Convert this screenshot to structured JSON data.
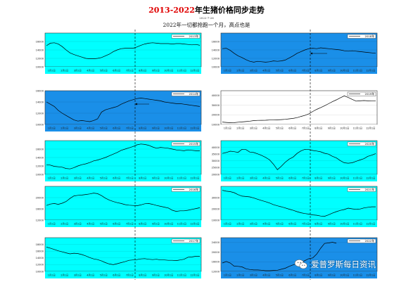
{
  "header": {
    "title_red": "2013-2022",
    "title_rest": "年生猪价格同步走势",
    "date": "2022-7-26",
    "subtitle": "2022年一切都抢跑一个月，高点也是"
  },
  "watermark": {
    "text": "爱普罗斯每日资讯",
    "icon": "wechat-logo-icon"
  },
  "colors": {
    "cyan_bg": "#00ffff",
    "blue_bg": "#1a8fe8",
    "line": "#000000",
    "axis_bg": "#ffffff"
  },
  "chart_data": [
    {
      "type": "line",
      "series": [
        {
          "name": "2013年",
          "values": [
            15,
            15.6,
            15.7,
            15.4,
            14.8,
            14,
            13.3,
            12.9,
            12.6,
            12.3,
            12,
            11.9,
            11.9,
            12,
            12.2,
            12.6,
            13,
            13.6,
            14,
            14.3,
            14.4,
            14.4,
            14.4,
            14.7,
            15.1,
            15.4,
            15.6,
            15.7,
            15.6,
            15.5,
            15.5,
            15.5,
            15.4,
            15.5,
            15.5,
            15.4,
            15.3,
            15.2,
            15.3,
            15.1
          ]
        }
      ],
      "ylim": [
        10,
        18
      ],
      "yticks": [
        "10000",
        "12000",
        "14000",
        "16000"
      ],
      "bg": "cyan"
    },
    {
      "type": "line",
      "series": [
        {
          "name": "2018年",
          "values": [
            14.3,
            14.4,
            13.9,
            13.2,
            12.6,
            12.2,
            11.7,
            11.3,
            11.1,
            11.3,
            11.2,
            11.1,
            11.2,
            11.4,
            11.3,
            11.4,
            11.6,
            12.1,
            12.6,
            13.2,
            13.6,
            14,
            14.3,
            14.4,
            14.3,
            14.5,
            14.4,
            14.3,
            14.2,
            14.1,
            14,
            13.8,
            13.7,
            13.8,
            13.7,
            13.6,
            13.5,
            13.4,
            13.3,
            13.2
          ]
        }
      ],
      "ylim": [
        10,
        18
      ],
      "yticks": [
        "10000",
        "12000",
        "14000",
        "16000"
      ],
      "bg": "blue"
    },
    {
      "type": "line",
      "series": [
        {
          "name": "2014年",
          "values": [
            14,
            13.6,
            13.2,
            12.5,
            12,
            11.6,
            11.2,
            10.8,
            10.6,
            10.7,
            10.6,
            10.5,
            10.7,
            11,
            12.2,
            12.6,
            12.8,
            13,
            13.2,
            13.6,
            13.9,
            14.2,
            14.4,
            14.6,
            14.7,
            14.6,
            14.5,
            14.4,
            14.3,
            14.2,
            14,
            13.9,
            13.8,
            13.7,
            13.7,
            13.6,
            13.5,
            13.4,
            13.3,
            13.2
          ]
        }
      ],
      "ylim": [
        10,
        16
      ],
      "yticks": [
        "10000",
        "12000",
        "14000",
        "16000"
      ],
      "bg": "blue"
    },
    {
      "type": "line",
      "series": [
        {
          "name": "2019年",
          "values": [
            12.5,
            12.1,
            11.8,
            11.9,
            12.3,
            12.6,
            13,
            13.4,
            14,
            14.2,
            14.3,
            14.4,
            14.6,
            14.6,
            14.8,
            15,
            15.3,
            15.8,
            16.3,
            17.1,
            18.3,
            19.4,
            21,
            23.5,
            25.7,
            27.4,
            29.4,
            31.5,
            33.6,
            35.5,
            37.6,
            39.6,
            38,
            36,
            34.2,
            34.5,
            34.8,
            34.5,
            34.6,
            34.6
          ]
        }
      ],
      "ylim": [
        10,
        45
      ],
      "yticks": [
        "10000",
        "20000",
        "30000",
        "40000"
      ],
      "bg": "white"
    },
    {
      "type": "line",
      "series": [
        {
          "name": "2015年",
          "values": [
            12.3,
            12.2,
            11.9,
            11.8,
            11.7,
            11.4,
            11.3,
            11.6,
            12,
            12.3,
            12.5,
            12.8,
            13.2,
            13.4,
            13.7,
            14,
            14.4,
            14.8,
            15.2,
            15.7,
            16,
            16.3,
            16.6,
            17,
            17.2,
            17.1,
            16.9,
            16.5,
            16.2,
            16.4,
            16.3,
            16.2,
            16,
            15.8,
            15.7,
            15.6,
            15.8,
            15.7,
            15.6,
            15.6
          ]
        }
      ],
      "ylim": [
        10,
        18
      ],
      "yticks": [
        "10000",
        "12000",
        "14000",
        "16000"
      ],
      "bg": "cyan"
    },
    {
      "type": "line",
      "series": [
        {
          "name": "2020年",
          "values": [
            35.5,
            36.2,
            37.2,
            36.8,
            36.3,
            38.6,
            38.4,
            36.5,
            36.2,
            35.2,
            34,
            32.6,
            30.8,
            27.5,
            23.5,
            26,
            29,
            31.3,
            32.8,
            35.5,
            37.4,
            38.6,
            38.4,
            37.7,
            37.3,
            36.7,
            35.6,
            35,
            33.4,
            32.2,
            30.2,
            28.6,
            28.3,
            28.6,
            29.7,
            30.7,
            31.6,
            33.4,
            34.2,
            35.4
          ]
        }
      ],
      "ylim": [
        20,
        45
      ],
      "yticks": [
        "20000",
        "25000",
        "30000",
        "35000",
        "40000"
      ],
      "bg": "cyan"
    },
    {
      "type": "line",
      "series": [
        {
          "name": "2016年",
          "values": [
            17.2,
            17.7,
            17.9,
            17.6,
            18,
            18.6,
            19.7,
            20.6,
            20.8,
            20.9,
            21.1,
            21.3,
            21.6,
            21.4,
            20.7,
            19.8,
            19.1,
            18.6,
            18.2,
            17.9,
            17.5,
            17.3,
            17.2,
            17.1,
            17.4,
            17.8,
            17.9,
            17.6,
            17.2,
            16.9,
            16.6,
            16.3,
            15.5,
            15.1,
            15.3,
            15.3,
            15.5,
            15.8,
            16.1,
            16.4
          ]
        }
      ],
      "ylim": [
        12,
        24
      ],
      "yticks": [
        "12000",
        "16000",
        "20000"
      ],
      "bg": "cyan"
    },
    {
      "type": "line",
      "series": [
        {
          "name": "2021年",
          "values": [
            36.5,
            35.7,
            35.3,
            34.4,
            32.6,
            31.3,
            31,
            30.6,
            29.6,
            28.5,
            27.4,
            26.4,
            25.2,
            23.7,
            22.7,
            21.8,
            20.8,
            19.7,
            18.7,
            17.5,
            16.5,
            15.8,
            15.3,
            14.6,
            14.3,
            13.6,
            13.4,
            14.6,
            16.2,
            17.5,
            18.6,
            19.4,
            20.6,
            20,
            19.5,
            19.8,
            20.8,
            21.4,
            21.8,
            21.8
          ]
        }
      ],
      "ylim": [
        10,
        40
      ],
      "yticks": [
        "10000",
        "20000",
        "30000"
      ],
      "bg": "cyan"
    },
    {
      "type": "line",
      "series": [
        {
          "name": "2017年",
          "values": [
            17.2,
            16.9,
            16.5,
            16.1,
            15.8,
            15.5,
            15.2,
            15.4,
            15.3,
            15,
            14.6,
            14.1,
            13.7,
            13.5,
            13.1,
            12.6,
            12.2,
            12,
            12.3,
            12.6,
            12.9,
            13.3,
            13.4,
            13.5,
            13.7,
            13.8,
            13.6,
            13.5,
            13.6,
            13.4,
            13.4,
            13.3,
            13.3,
            13.2,
            13.4,
            13.6,
            14.2,
            14.3,
            14.5,
            14.5
          ]
        }
      ],
      "ylim": [
        10,
        20
      ],
      "yticks": [
        "10000",
        "12000",
        "14000",
        "16000",
        "18000"
      ],
      "bg": "cyan"
    },
    {
      "type": "line",
      "series": [
        {
          "name": "2022年",
          "values": [
            15.5,
            16.1,
            15.5,
            14.2,
            14.1,
            13.9,
            13.1,
            12.8,
            12.6,
            12.6,
            12.5,
            12.3,
            12.3,
            12.4,
            12.5,
            12.9,
            13.3,
            14.1,
            14.7,
            15.3,
            15.6,
            16.5,
            17.3,
            17.6,
            19.2,
            21.6,
            23.6,
            23.8,
            24.1,
            23.7
          ]
        }
      ],
      "ylim": [
        12,
        26
      ],
      "yticks": [
        "12000",
        "16000",
        "20000",
        "24000"
      ],
      "bg": "blue"
    }
  ],
  "x_ticks": [
    "1月1日",
    "2月1日",
    "3月1日",
    "4月1日",
    "5月1日",
    "6月1日",
    "7月1日",
    "8月1日",
    "9月1日",
    "10月1日",
    "11月1日",
    "12月1日"
  ]
}
